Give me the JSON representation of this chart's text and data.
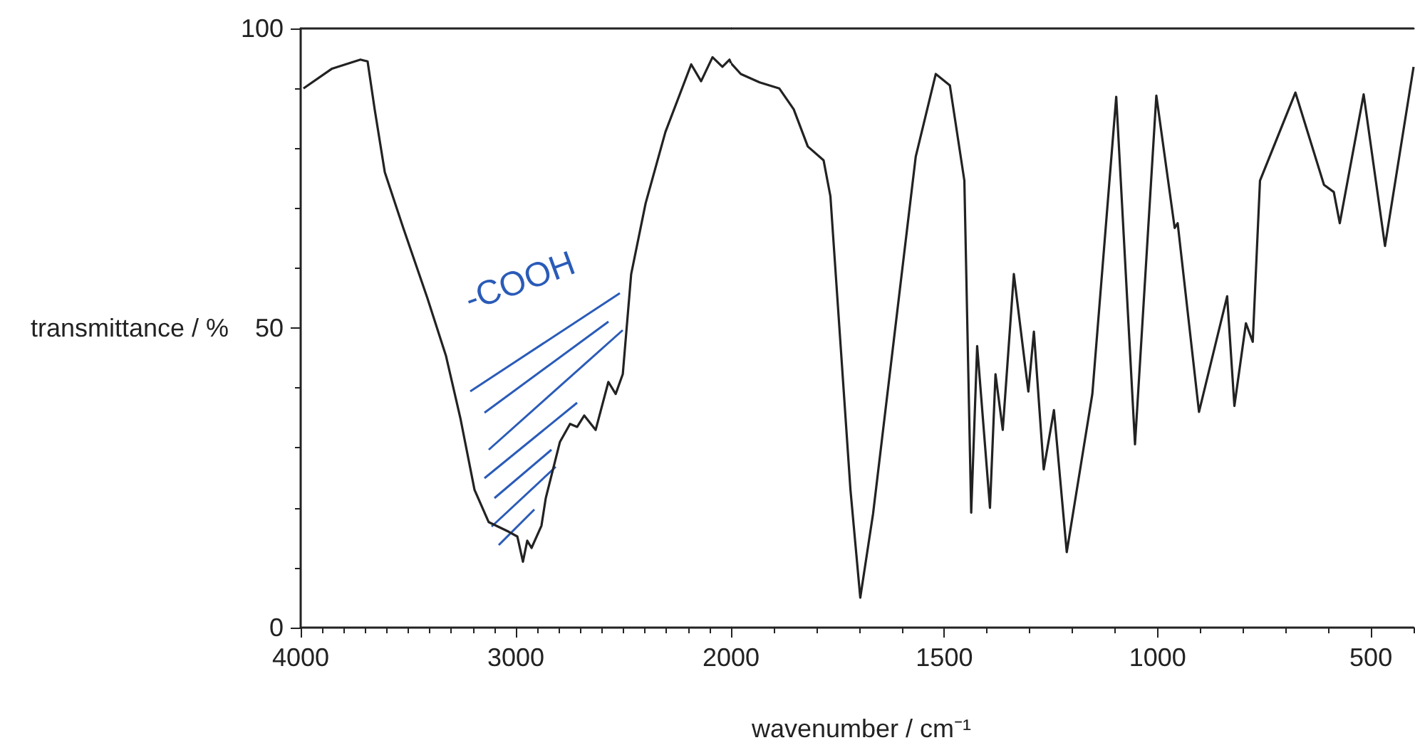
{
  "chart_data": [
    {
      "type": "line",
      "ylabel": "transmittance / %",
      "marker": "none",
      "xlim": [
        4000,
        2000
      ],
      "ylim": [
        0,
        100
      ],
      "xticks": [
        4000,
        3000,
        2000
      ],
      "yticks": [
        0,
        50,
        100
      ],
      "annotations": [
        "-COOH"
      ],
      "series": [
        {
          "color": "#222222",
          "x": [
            3987,
            3854,
            3722,
            3689,
            3656,
            3609,
            3523,
            3411,
            3325,
            3258,
            3192,
            3126,
            3033,
            2993,
            2967,
            2947,
            2927,
            2881,
            2861,
            2795,
            2748,
            2715,
            2682,
            2629,
            2570,
            2536,
            2503,
            2464,
            2397,
            2305,
            2185,
            2139,
            2086,
            2040,
            2007,
            2000
          ],
          "values": [
            90,
            93.3,
            94.8,
            94.5,
            86.5,
            76,
            66.7,
            55,
            45.4,
            35,
            23,
            17.6,
            16,
            15.2,
            11,
            14.5,
            13.3,
            17,
            21.6,
            31,
            34,
            33.5,
            35.4,
            33,
            41,
            39,
            42.3,
            59,
            70.8,
            82.7,
            94,
            91.2,
            95.2,
            93.6,
            94.8,
            94.2
          ]
        }
      ]
    },
    {
      "type": "line",
      "xlabel": "wavenumber / cm⁻¹",
      "marker": "none",
      "xlim": [
        2000,
        400
      ],
      "ylim": [
        0,
        100
      ],
      "xticks": [
        1500,
        1000,
        500
      ],
      "tick_labels": "x",
      "series": [
        {
          "color": "#222222",
          "x": [
            2000,
            1977,
            1933,
            1887,
            1853,
            1820,
            1783,
            1767,
            1743,
            1720,
            1697,
            1667,
            1620,
            1567,
            1520,
            1487,
            1453,
            1437,
            1423,
            1393,
            1380,
            1363,
            1337,
            1303,
            1290,
            1267,
            1243,
            1213,
            1153,
            1097,
            1053,
            1003,
            960,
            953,
            903,
            837,
            820,
            793,
            777,
            760,
            677,
            610,
            587,
            573,
            517,
            467,
            400
          ],
          "values": [
            94.2,
            92.4,
            91,
            90,
            86.5,
            80.3,
            78,
            72,
            47,
            23,
            5,
            19,
            47,
            78.6,
            92.4,
            90.5,
            74.6,
            19.2,
            47,
            20,
            42.3,
            33,
            59,
            39.4,
            49.4,
            26.4,
            36.3,
            12.6,
            39,
            88.6,
            30.6,
            88.8,
            66.7,
            67.5,
            36,
            55.3,
            37,
            50.8,
            47.7,
            74.6,
            89.3,
            73.9,
            72.7,
            67.5,
            89,
            63.7,
            93.6
          ]
        }
      ]
    }
  ]
}
